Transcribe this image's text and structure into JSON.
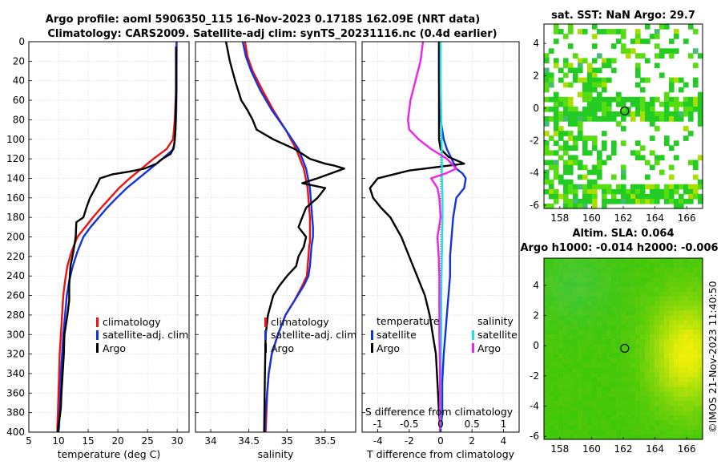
{
  "colors": {
    "climatology": "#ee1111",
    "satellite": "#1133dd",
    "argo": "#000000",
    "sal_satellite": "#22e0e0",
    "sal_argo": "#ee22ee"
  },
  "titles": {
    "line1": "Argo profile: aoml 5906350_115 16-Nov-2023 0.1718S 162.09E (NRT data)",
    "line2": "Climatology: CARS2009. Satellite-adj clim: synTS_20231116.nc (0.4d earlier)",
    "sst_title": "sat. SST: NaN Argo: 29.7",
    "sla_title1": "Altim. SLA: 0.064",
    "sla_title2": "Argo h1000: -0.014 h2000: -0.006",
    "credit": "©IMOS 21-Nov-2023 11:40:50"
  },
  "legends": {
    "temp": [
      "climatology",
      "satellite-adj. clim",
      "Argo"
    ],
    "sal": [
      "climatology",
      "satellite-adj. clim",
      "Argo"
    ],
    "diff_temp_header": "temperature",
    "diff_sal_header": "salinity",
    "diff_temp": [
      "satellite",
      "Argo"
    ],
    "diff_sal": [
      "satellite",
      "Argo"
    ]
  },
  "chart_data": [
    {
      "type": "line",
      "id": "temperature",
      "xlabel": "temperature (deg C)",
      "ylabel": "",
      "xlim": [
        5,
        32
      ],
      "ylim": [
        400,
        0
      ],
      "xticks": [
        5,
        10,
        15,
        20,
        25,
        30
      ],
      "yticks": [
        0,
        20,
        40,
        60,
        80,
        100,
        120,
        140,
        160,
        180,
        200,
        220,
        240,
        260,
        280,
        300,
        320,
        340,
        360,
        380,
        400
      ],
      "grid": true,
      "series": [
        {
          "name": "climatology",
          "color_key": "climatology",
          "x": [
            29.9,
            29.9,
            29.8,
            29.6,
            29.3,
            28.2,
            26.0,
            24.0,
            22.0,
            20.2,
            18.7,
            17.2,
            15.8,
            14.5,
            13.2,
            12.2,
            11.5,
            11.1,
            10.8,
            10.6,
            10.4,
            10.2,
            10.1,
            10.0,
            9.9,
            9.8,
            9.8
          ],
          "y": [
            0,
            20,
            50,
            80,
            100,
            110,
            120,
            130,
            140,
            150,
            160,
            170,
            180,
            190,
            200,
            215,
            230,
            245,
            260,
            280,
            300,
            320,
            340,
            360,
            380,
            395,
            400
          ]
        },
        {
          "name": "satellite-adj. clim",
          "color_key": "satellite",
          "x": [
            29.9,
            29.9,
            29.9,
            29.8,
            29.6,
            29.4,
            27.5,
            25.5,
            23.5,
            21.5,
            19.8,
            18.2,
            16.8,
            15.4,
            14.2,
            13.2,
            12.4,
            11.8,
            11.4,
            11.1,
            10.8,
            10.6,
            10.4,
            10.3,
            10.2,
            10.1,
            10.0
          ],
          "y": [
            0,
            20,
            50,
            80,
            100,
            110,
            120,
            130,
            140,
            150,
            160,
            170,
            180,
            190,
            200,
            215,
            230,
            245,
            260,
            280,
            300,
            320,
            340,
            360,
            380,
            395,
            400
          ]
        },
        {
          "name": "Argo",
          "color_key": "argo",
          "x": [
            29.8,
            29.8,
            29.8,
            29.8,
            29.7,
            29.7,
            29.6,
            29.5,
            29.3,
            28.9,
            27.5,
            26.5,
            24.5,
            22.0,
            19.0,
            17.0,
            16.2,
            15.3,
            14.7,
            14.2,
            13.0,
            12.9,
            12.5,
            12.0,
            11.8,
            11.8,
            11.5,
            11.0,
            10.9,
            10.7,
            10.5,
            10.4,
            10.2,
            10.0,
            9.9,
            9.9
          ],
          "y": [
            5,
            20,
            40,
            60,
            80,
            90,
            100,
            105,
            110,
            115,
            120,
            125,
            130,
            133,
            136,
            140,
            150,
            160,
            170,
            180,
            185,
            200,
            215,
            230,
            250,
            265,
            280,
            300,
            320,
            340,
            360,
            375,
            385,
            392,
            397,
            400
          ]
        }
      ]
    },
    {
      "type": "line",
      "id": "salinity",
      "xlabel": "salinity",
      "xlim": [
        33.8,
        35.9
      ],
      "ylim": [
        400,
        0
      ],
      "xticks": [
        34,
        34.5,
        35,
        35.5
      ],
      "grid": true,
      "series": [
        {
          "name": "climatology",
          "color_key": "climatology",
          "x": [
            34.45,
            34.48,
            34.55,
            34.68,
            34.82,
            34.98,
            35.12,
            35.22,
            35.27,
            35.29,
            35.3,
            35.3,
            35.3,
            35.3,
            35.29,
            35.28,
            35.27,
            35.26,
            35.2,
            35.1,
            34.98,
            34.88,
            34.8,
            34.76,
            34.74,
            34.73,
            34.72
          ],
          "y": [
            0,
            15,
            30,
            50,
            70,
            90,
            110,
            130,
            150,
            170,
            180,
            190,
            200,
            205,
            210,
            220,
            230,
            240,
            250,
            265,
            280,
            300,
            320,
            340,
            360,
            380,
            400
          ]
        },
        {
          "name": "satellite-adj. clim",
          "color_key": "satellite",
          "x": [
            34.42,
            34.46,
            34.53,
            34.65,
            34.8,
            34.98,
            35.15,
            35.25,
            35.3,
            35.32,
            35.33,
            35.34,
            35.34,
            35.33,
            35.32,
            35.31,
            35.3,
            35.28,
            35.22,
            35.1,
            34.98,
            34.88,
            34.8,
            34.76,
            34.74,
            34.72,
            34.71
          ],
          "y": [
            0,
            15,
            30,
            50,
            70,
            90,
            110,
            130,
            150,
            170,
            180,
            190,
            200,
            205,
            210,
            220,
            230,
            240,
            250,
            265,
            280,
            300,
            320,
            340,
            360,
            380,
            400
          ]
        },
        {
          "name": "Argo",
          "color_key": "argo",
          "x": [
            34.2,
            34.25,
            34.32,
            34.4,
            34.48,
            34.55,
            34.6,
            34.82,
            35.1,
            35.3,
            35.5,
            35.62,
            35.75,
            35.4,
            35.2,
            35.5,
            35.4,
            35.25,
            35.2,
            35.15,
            35.25,
            35.22,
            35.15,
            35.12,
            35.0,
            34.9,
            34.82,
            34.75,
            34.72,
            34.71,
            34.7
          ],
          "y": [
            0,
            20,
            40,
            60,
            70,
            80,
            90,
            100,
            110,
            120,
            125,
            127,
            130,
            140,
            145,
            150,
            160,
            170,
            180,
            190,
            200,
            210,
            220,
            230,
            240,
            250,
            260,
            280,
            300,
            340,
            400
          ]
        }
      ]
    },
    {
      "type": "line",
      "id": "difference",
      "xlabel": "T difference from climatology",
      "x2label": "S difference from climatology",
      "xlim": [
        -5,
        5
      ],
      "x2lim": [
        -1.25,
        1.25
      ],
      "ylim": [
        400,
        0
      ],
      "xticks": [
        -4,
        -2,
        0,
        2,
        4
      ],
      "x2ticks": [
        -1,
        -0.5,
        0,
        0.5,
        1
      ],
      "grid": true,
      "series": [
        {
          "name": "temperature satellite",
          "axis": "T",
          "color_key": "satellite",
          "x": [
            -0.1,
            -0.1,
            0.0,
            0.2,
            0.4,
            0.7,
            1.0,
            1.4,
            1.6,
            1.5,
            1.0,
            0.8,
            0.7,
            0.6,
            0.6,
            0.5,
            0.4,
            0.3,
            0.2,
            0.1,
            0.1,
            0.0
          ],
          "y": [
            0,
            40,
            80,
            100,
            110,
            120,
            130,
            135,
            140,
            150,
            160,
            180,
            200,
            220,
            240,
            260,
            280,
            300,
            320,
            350,
            380,
            400
          ]
        },
        {
          "name": "temperature Argo",
          "axis": "T",
          "color_key": "argo",
          "x": [
            -0.1,
            -0.1,
            -0.1,
            -0.1,
            0.0,
            0.5,
            1.5,
            -2.0,
            -4.0,
            -4.5,
            -4.3,
            -3.8,
            -3.2,
            -2.5,
            -2.0,
            -1.5,
            -1.0,
            -0.7,
            -0.5,
            -0.3,
            -0.2,
            -0.1,
            0.0
          ],
          "y": [
            0,
            20,
            60,
            100,
            110,
            118,
            125,
            132,
            140,
            150,
            160,
            170,
            180,
            200,
            220,
            240,
            260,
            280,
            300,
            320,
            350,
            380,
            400
          ]
        },
        {
          "name": "salinity satellite",
          "axis": "S",
          "color_key": "sal_satellite",
          "x": [
            0.0,
            0.0,
            0.01,
            0.02,
            0.02,
            0.03,
            0.03,
            0.02,
            0.01,
            0.01,
            0.0,
            0.0
          ],
          "y": [
            0,
            40,
            80,
            120,
            140,
            160,
            180,
            220,
            260,
            300,
            350,
            400
          ]
        },
        {
          "name": "salinity Argo",
          "axis": "S",
          "color_key": "sal_argo",
          "x": [
            -0.28,
            -0.32,
            -0.4,
            -0.48,
            -0.52,
            -0.5,
            -0.35,
            -0.15,
            0.1,
            0.25,
            0.08,
            -0.15,
            -0.05,
            -0.02,
            0.0,
            -0.05,
            -0.03,
            -0.02,
            -0.02,
            -0.02,
            -0.02,
            -0.01,
            -0.01
          ],
          "y": [
            0,
            20,
            40,
            60,
            80,
            90,
            100,
            110,
            120,
            130,
            135,
            140,
            150,
            160,
            180,
            200,
            220,
            240,
            260,
            280,
            300,
            340,
            400
          ]
        }
      ]
    },
    {
      "type": "heatmap",
      "id": "sst_map",
      "xlim": [
        157,
        167
      ],
      "ylim": [
        -6.2,
        5.2
      ],
      "xticks": [
        158,
        160,
        162,
        164,
        166
      ],
      "yticks": [
        -6,
        -4,
        -2,
        0,
        2,
        4
      ],
      "argo_position": {
        "lon": 162.09,
        "lat": -0.17
      }
    },
    {
      "type": "heatmap",
      "id": "sla_map",
      "xlim": [
        157,
        167
      ],
      "ylim": [
        -6.2,
        5.8
      ],
      "xticks": [
        158,
        160,
        162,
        164,
        166
      ],
      "yticks": [
        -6,
        -4,
        -2,
        0,
        2,
        4
      ],
      "argo_position": {
        "lon": 162.09,
        "lat": -0.17
      }
    }
  ]
}
